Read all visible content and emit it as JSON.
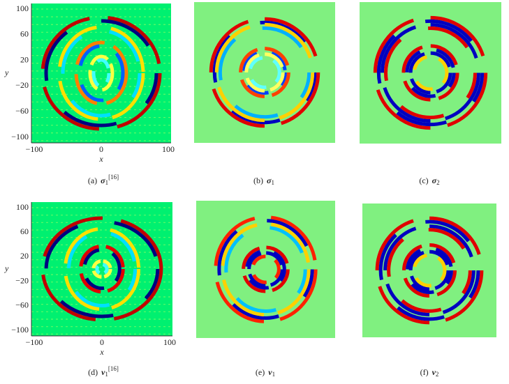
{
  "panels": [
    {
      "label": "(a)",
      "symbol": "σ",
      "sub": "1",
      "sup": "[16]",
      "axes": {
        "ylabel": "y",
        "xlabel": "x",
        "yticks": [
          "100",
          "60",
          "20",
          "−20",
          "−60",
          "−100"
        ],
        "xticks": [
          "−100",
          "0",
          "100"
        ]
      }
    },
    {
      "label": "(b)",
      "symbol": "σ",
      "sub": "1"
    },
    {
      "label": "(c)",
      "symbol": "σ",
      "sub": "2"
    },
    {
      "label": "(d)",
      "symbol": "v",
      "sub": "1",
      "sup": "[16]",
      "axes": {
        "ylabel": "y",
        "xlabel": "x",
        "yticks": [
          "100",
          "60",
          "20",
          "−20",
          "−60",
          "−100"
        ],
        "xticks": [
          "−100",
          "0",
          "100"
        ]
      }
    },
    {
      "label": "(e)",
      "symbol": "v",
      "sub": "1"
    },
    {
      "label": "(f)",
      "symbol": "v",
      "sub": "2"
    }
  ]
}
